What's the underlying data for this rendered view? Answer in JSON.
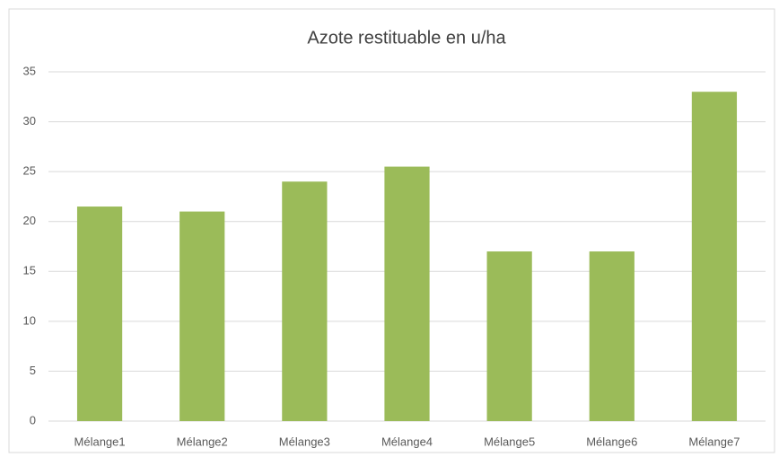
{
  "chart_data": {
    "type": "bar",
    "title": "Azote restituable en u/ha",
    "categories": [
      "Mélange1",
      "Mélange2",
      "Mélange3",
      "Mélange4",
      "Mélange5",
      "Mélange6",
      "Mélange7"
    ],
    "values": [
      21.5,
      21,
      24,
      25.5,
      17,
      17,
      33
    ],
    "color": "#9bbb59",
    "ylim": [
      0,
      35
    ],
    "yticks": [
      0,
      5,
      10,
      15,
      20,
      25,
      30,
      35
    ],
    "grid": true
  }
}
